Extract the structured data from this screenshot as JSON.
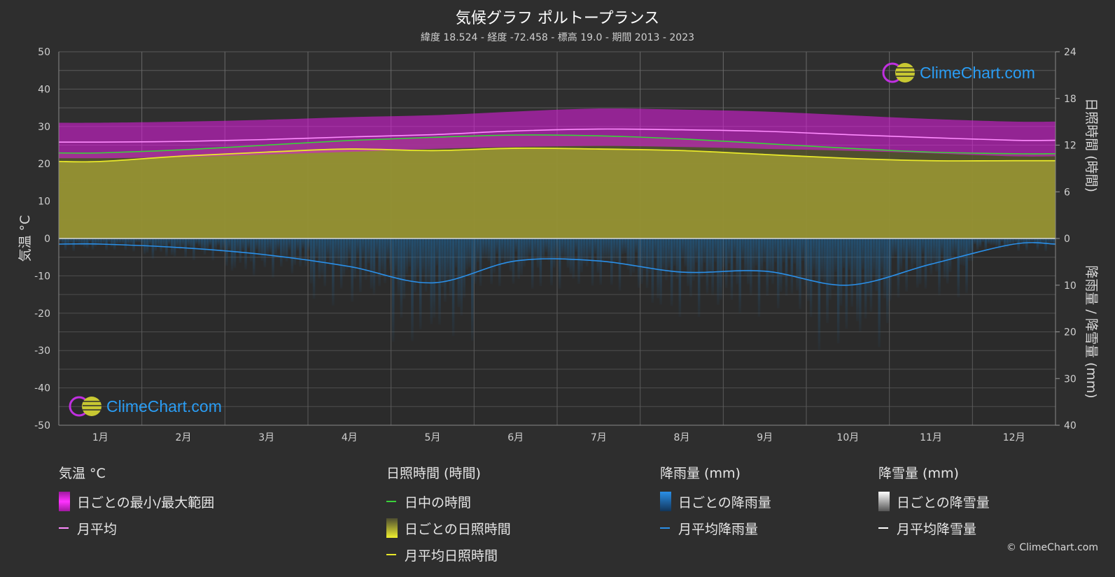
{
  "header": {
    "title": "気候グラフ ポルトープランス",
    "subtitle": "緯度 18.524 - 経度 -72.458 - 標高 19.0 - 期間 2013 - 2023"
  },
  "logo_text": "ClimeChart.com",
  "copyright": "© ClimeChart.com",
  "colors": {
    "background": "#2e2e2e",
    "temp_range": "#d21fd2",
    "temp_avg": "#ff8cff",
    "daylight": "#3ad23a",
    "sunshine_fill": "#aaa635",
    "sunshine_avg": "#e8e82a",
    "rain": "#1f7fc8",
    "rain_avg": "#2a8fe8",
    "snow_avg": "#ffffff"
  },
  "chart_data": {
    "type": "line",
    "categories": [
      "1月",
      "2月",
      "3月",
      "4月",
      "5月",
      "6月",
      "7月",
      "8月",
      "9月",
      "10月",
      "11月",
      "12月"
    ],
    "y_left": {
      "label": "気温 °C",
      "range": [
        -50,
        50
      ],
      "ticks": [
        "50",
        "40",
        "30",
        "20",
        "10",
        "0",
        "-10",
        "-20",
        "-30",
        "-40",
        "-50"
      ]
    },
    "y_right_top": {
      "label": "日照時間 (時間)",
      "range": [
        0,
        24
      ],
      "ticks": [
        "24",
        "18",
        "12",
        "6",
        "0"
      ]
    },
    "y_right_bottom": {
      "label": "降雨量 / 降雪量 (mm)",
      "range": [
        0,
        40
      ],
      "ticks": [
        "0",
        "10",
        "20",
        "30",
        "40"
      ]
    },
    "series": [
      {
        "name": "月平均",
        "axis": "temp",
        "values": [
          25.8,
          26.0,
          26.5,
          27.2,
          27.8,
          28.8,
          29.3,
          29.1,
          28.7,
          27.8,
          27.0,
          26.3
        ]
      },
      {
        "name": "日ごとの最小/最大範囲",
        "axis": "temp",
        "min": [
          21.5,
          21.8,
          22.5,
          23.2,
          24.0,
          24.5,
          24.8,
          24.5,
          24.0,
          23.5,
          22.8,
          22.0
        ],
        "max": [
          31.0,
          31.3,
          31.8,
          32.5,
          33.0,
          34.0,
          34.8,
          34.5,
          34.0,
          33.0,
          32.0,
          31.3
        ]
      },
      {
        "name": "日中の時間",
        "axis": "sun",
        "values": [
          11.0,
          11.4,
          12.0,
          12.6,
          13.0,
          13.3,
          13.2,
          12.8,
          12.2,
          11.6,
          11.1,
          10.9
        ]
      },
      {
        "name": "月平均日照時間",
        "axis": "sun",
        "values": [
          9.9,
          10.6,
          11.1,
          11.5,
          11.3,
          11.6,
          11.5,
          11.3,
          10.8,
          10.3,
          10.0,
          10.0
        ]
      },
      {
        "name": "月平均降雨量",
        "axis": "rain",
        "values": [
          1.2,
          2.0,
          3.5,
          6.0,
          9.5,
          4.8,
          4.8,
          7.2,
          7.0,
          10.0,
          5.5,
          1.2
        ]
      }
    ]
  },
  "legend": [
    {
      "heading": "気温 °C",
      "items": [
        {
          "label": "日ごとの最小/最大範囲",
          "kind": "box",
          "color": "#d21fd2"
        },
        {
          "label": "月平均",
          "kind": "line",
          "color": "#ff8cff"
        }
      ]
    },
    {
      "heading": "日照時間 (時間)",
      "items": [
        {
          "label": "日中の時間",
          "kind": "line",
          "color": "#3ad23a"
        },
        {
          "label": "日ごとの日照時間",
          "kind": "box",
          "color": "#c8c832"
        },
        {
          "label": "月平均日照時間",
          "kind": "line",
          "color": "#e8e82a"
        }
      ]
    },
    {
      "heading": "降雨量 (mm)",
      "items": [
        {
          "label": "日ごとの降雨量",
          "kind": "box",
          "color": "#1f7fc8"
        },
        {
          "label": "月平均降雨量",
          "kind": "line",
          "color": "#2a8fe8"
        }
      ]
    },
    {
      "heading": "降雪量 (mm)",
      "items": [
        {
          "label": "日ごとの降雪量",
          "kind": "box",
          "color": "#d0d0d0"
        },
        {
          "label": "月平均降雪量",
          "kind": "line",
          "color": "#ffffff"
        }
      ]
    }
  ]
}
